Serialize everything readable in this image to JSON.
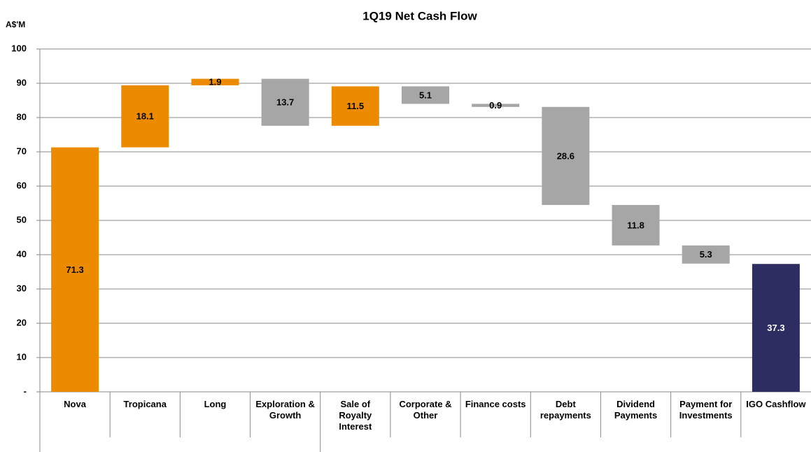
{
  "chart_data": {
    "type": "waterfall",
    "title": "1Q19 Net Cash Flow",
    "y_label": "A$'M",
    "categories": [
      "Nova",
      "Tropicana",
      "Long",
      "Exploration & Growth",
      "Sale of Royalty Interest",
      "Corporate & Other",
      "Finance costs",
      "Debt repayments",
      "Dividend Payments",
      "Payment for Investments",
      "IGO Cashflow"
    ],
    "values": [
      71.3,
      18.1,
      1.9,
      -13.7,
      11.5,
      -5.1,
      -0.9,
      -28.6,
      -11.8,
      -5.3,
      37.3
    ],
    "value_labels": [
      "71.3",
      "18.1",
      "1.9",
      "13.7",
      "11.5",
      "5.1",
      "0.9",
      "28.6",
      "11.8",
      "5.3",
      "37.3"
    ],
    "colors": [
      "#ED8B00",
      "#ED8B00",
      "#ED8B00",
      "#A6A6A6",
      "#ED8B00",
      "#A6A6A6",
      "#A6A6A6",
      "#A6A6A6",
      "#A6A6A6",
      "#A6A6A6",
      "#2E2D62"
    ],
    "ylim": [
      0,
      100
    ],
    "yticks": [
      {
        "value": 0,
        "label": "-"
      },
      10,
      20,
      30,
      40,
      50,
      60,
      70,
      80,
      90,
      100
    ],
    "grid": true
  }
}
